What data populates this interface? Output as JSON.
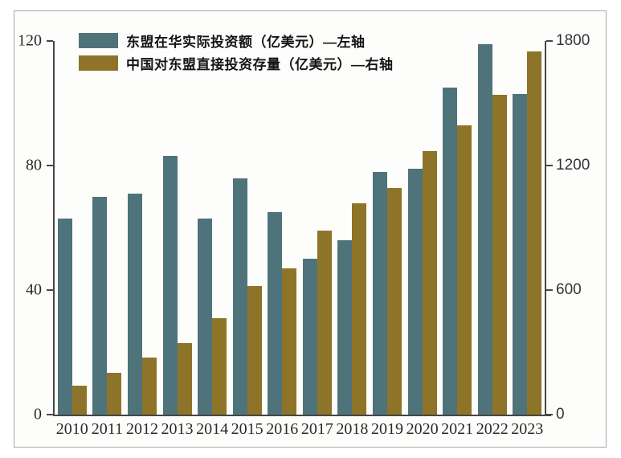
{
  "chart_data": {
    "type": "bar",
    "title": "",
    "xlabel": "",
    "ylabel_left": "亿美元",
    "ylabel_right": "亿美元",
    "grid": false,
    "legend_position": "top-left",
    "categories": [
      "2010",
      "2011",
      "2012",
      "2013",
      "2014",
      "2015",
      "2016",
      "2017",
      "2018",
      "2019",
      "2020",
      "2021",
      "2022",
      "2023"
    ],
    "series": [
      {
        "name": "东盟在华实际投资额（亿美元）—左轴",
        "axis": "left",
        "color": "#4e737b",
        "values": [
          63,
          70,
          71,
          83,
          63,
          76,
          65,
          50,
          56,
          78,
          79,
          105,
          119,
          103
        ]
      },
      {
        "name": "中国对东盟直接投资存量（亿美元）—右轴",
        "axis": "right",
        "color": "#8e7428",
        "values": [
          140,
          200,
          275,
          345,
          465,
          620,
          705,
          885,
          1020,
          1090,
          1270,
          1395,
          1540,
          1750
        ]
      }
    ],
    "left_axis": {
      "range": [
        0,
        120
      ],
      "ticks": [
        0,
        40,
        80,
        120
      ]
    },
    "right_axis": {
      "range": [
        0,
        1800
      ],
      "ticks": [
        0,
        600,
        1200,
        1800
      ]
    }
  },
  "colors": {
    "teal": "#4e737b",
    "gold": "#8e7428",
    "axis": "#474747",
    "frame_border": "#a9a9a9",
    "background": "#fdfdfb"
  }
}
